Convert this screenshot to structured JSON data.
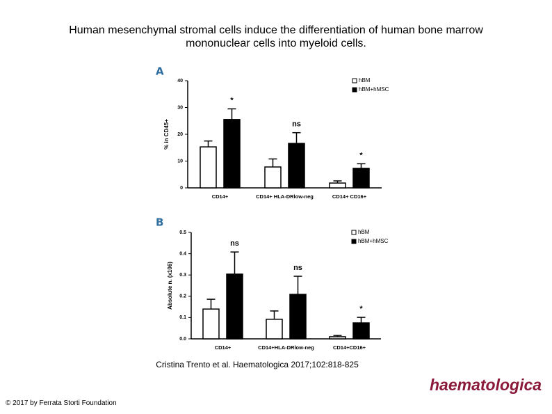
{
  "title": "Human mesenchymal stromal cells induce the differentiation of human bone marrow mononuclear cells into myeloid cells.",
  "citation": "Cristina Trento et al. Haematologica 2017;102:818-825",
  "copyright": "© 2017 by Ferrata Storti Foundation",
  "logo": "haematologica",
  "chart_data": [
    {
      "type": "bar",
      "panel": "A",
      "y_label": "% in CD45+",
      "categories": [
        "CD14+",
        "CD14+ HLA-DRlow-neg",
        "CD14+ CD16+"
      ],
      "series": [
        {
          "name": "hBM",
          "color": "#ffffff",
          "values": [
            15.3,
            7.8,
            1.8
          ],
          "errors": [
            2.2,
            3.0,
            0.8
          ]
        },
        {
          "name": "hBM+hMSC",
          "color": "#000000",
          "values": [
            25.5,
            16.6,
            7.3
          ],
          "errors": [
            4.0,
            4.0,
            1.7
          ]
        }
      ],
      "annotations": [
        "*",
        "ns",
        "*"
      ],
      "ylim": [
        0,
        40
      ],
      "yticks": [
        0,
        10,
        20,
        30,
        40
      ],
      "legend": "top-right"
    },
    {
      "type": "bar",
      "panel": "B",
      "y_label": "Absolute n. (x106)",
      "categories": [
        "CD14+",
        "CD14+HLA-DRlow-neg",
        "CD14+CD16+"
      ],
      "series": [
        {
          "name": "hBM",
          "color": "#ffffff",
          "values": [
            0.14,
            0.092,
            0.01
          ],
          "errors": [
            0.046,
            0.039,
            0.006
          ]
        },
        {
          "name": "hBM+hMSC",
          "color": "#000000",
          "values": [
            0.304,
            0.209,
            0.075
          ],
          "errors": [
            0.104,
            0.085,
            0.026
          ]
        }
      ],
      "annotations": [
        "ns",
        "ns",
        "*"
      ],
      "ylim": [
        0,
        0.5
      ],
      "yticks": [
        {
          "value": 0,
          "label": "0.0"
        },
        0.1,
        0.2,
        0.3,
        0.4,
        0.5
      ],
      "legend": "top-right"
    }
  ]
}
